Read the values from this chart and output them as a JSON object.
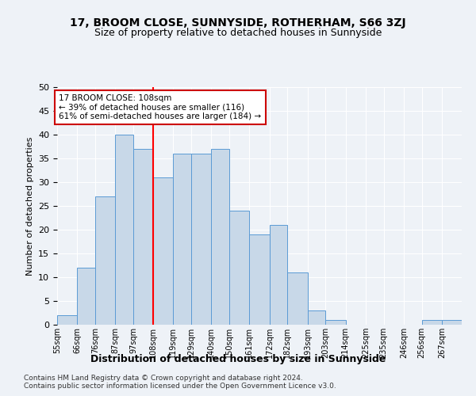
{
  "title": "17, BROOM CLOSE, SUNNYSIDE, ROTHERHAM, S66 3ZJ",
  "subtitle": "Size of property relative to detached houses in Sunnyside",
  "xlabel": "Distribution of detached houses by size in Sunnyside",
  "ylabel": "Number of detached properties",
  "bar_labels": [
    "55sqm",
    "66sqm",
    "76sqm",
    "87sqm",
    "97sqm",
    "108sqm",
    "119sqm",
    "129sqm",
    "140sqm",
    "150sqm",
    "161sqm",
    "172sqm",
    "182sqm",
    "193sqm",
    "203sqm",
    "214sqm",
    "225sqm",
    "235sqm",
    "246sqm",
    "256sqm",
    "267sqm"
  ],
  "bar_values": [
    2,
    12,
    27,
    40,
    37,
    31,
    36,
    36,
    37,
    24,
    19,
    21,
    11,
    3,
    1,
    0,
    0,
    0,
    0,
    1,
    1
  ],
  "bin_edges": [
    55,
    66,
    76,
    87,
    97,
    108,
    119,
    129,
    140,
    150,
    161,
    172,
    182,
    193,
    203,
    214,
    225,
    235,
    246,
    256,
    267,
    278
  ],
  "bar_color": "#c8d8e8",
  "bar_edge_color": "#5b9bd5",
  "red_line_x": 108,
  "ylim": [
    0,
    50
  ],
  "yticks": [
    0,
    5,
    10,
    15,
    20,
    25,
    30,
    35,
    40,
    45,
    50
  ],
  "annotation_title": "17 BROOM CLOSE: 108sqm",
  "annotation_line1": "← 39% of detached houses are smaller (116)",
  "annotation_line2": "61% of semi-detached houses are larger (184) →",
  "annotation_box_color": "#ffffff",
  "annotation_box_edge": "#cc0000",
  "footer1": "Contains HM Land Registry data © Crown copyright and database right 2024.",
  "footer2": "Contains public sector information licensed under the Open Government Licence v3.0.",
  "bg_color": "#eef2f7",
  "plot_bg_color": "#eef2f7",
  "grid_color": "#ffffff",
  "title_fontsize": 10,
  "subtitle_fontsize": 9
}
